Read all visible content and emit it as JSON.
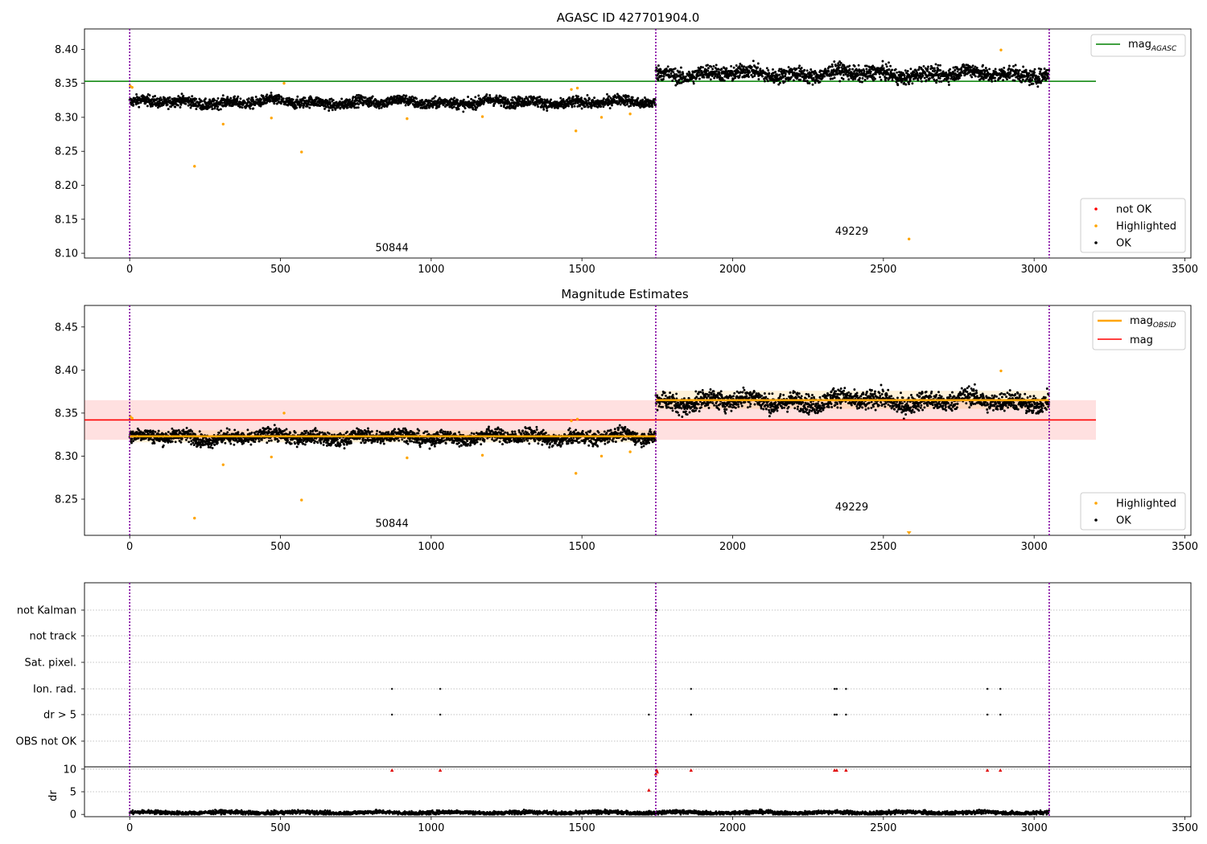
{
  "chart_data": [
    {
      "type": "scatter",
      "title": "AGASC ID 427701904.0",
      "xlim": [
        -150,
        3520
      ],
      "ylim": [
        8.093,
        8.43
      ],
      "xticks": [
        0,
        500,
        1000,
        1500,
        2000,
        2500,
        3000,
        3500
      ],
      "yticks": [
        "8.10",
        "8.15",
        "8.20",
        "8.25",
        "8.30",
        "8.35",
        "8.40"
      ],
      "obs_boundaries": [
        0,
        1745,
        3050
      ],
      "obs_labels": [
        {
          "text": "50844",
          "x": 870,
          "y": 8.103
        },
        {
          "text": "49229",
          "x": 2395,
          "y": 8.127
        }
      ],
      "mag_agasc": {
        "value": 8.353,
        "x0": -150,
        "x1": 3205,
        "color": "#008000"
      },
      "series": [
        {
          "name": "OK",
          "color": "#000000",
          "segments": [
            {
              "x0": 0,
              "x1": 1745,
              "mean": 8.322,
              "spread": 0.008
            },
            {
              "x0": 1745,
              "x1": 3050,
              "mean": 8.364,
              "spread": 0.011
            }
          ]
        },
        {
          "name": "Highlighted",
          "color": "#ffa500",
          "points": [
            [
              2,
              8.346
            ],
            [
              8,
              8.344
            ],
            [
              215,
              8.228
            ],
            [
              310,
              8.29
            ],
            [
              470,
              8.299
            ],
            [
              512,
              8.35
            ],
            [
              570,
              8.249
            ],
            [
              920,
              8.298
            ],
            [
              1170,
              8.301
            ],
            [
              1465,
              8.341
            ],
            [
              1480,
              8.28
            ],
            [
              1485,
              8.343
            ],
            [
              1565,
              8.3
            ],
            [
              1660,
              8.305
            ],
            [
              2585,
              8.121
            ],
            [
              2890,
              8.399
            ]
          ]
        },
        {
          "name": "not OK",
          "color": "#ff0000",
          "points": []
        }
      ],
      "legend_upper": [
        {
          "label": "mag",
          "sub": "AGASC",
          "color": "#008000"
        }
      ],
      "legend_lower": [
        {
          "label": "not OK",
          "color": "#ff0000"
        },
        {
          "label": "Highlighted",
          "color": "#ffa500"
        },
        {
          "label": "OK",
          "color": "#000000"
        }
      ]
    },
    {
      "type": "scatter",
      "title": "Magnitude Estimates",
      "xlim": [
        -150,
        3520
      ],
      "ylim": [
        8.208,
        8.475
      ],
      "xticks": [
        0,
        500,
        1000,
        1500,
        2000,
        2500,
        3000,
        3500
      ],
      "yticks": [
        "8.25",
        "8.30",
        "8.35",
        "8.40",
        "8.45"
      ],
      "obs_boundaries": [
        0,
        1745,
        3050
      ],
      "obs_labels": [
        {
          "text": "50844",
          "x": 870,
          "y": 8.218
        },
        {
          "text": "49229",
          "x": 2395,
          "y": 8.237
        }
      ],
      "mag": {
        "value": 8.342,
        "band": [
          8.319,
          8.365
        ],
        "x0": -150,
        "x1": 3205,
        "color": "#ff0000"
      },
      "mag_obsid": [
        {
          "x0": 0,
          "x1": 1745,
          "value": 8.323,
          "band": [
            8.316,
            8.33
          ]
        },
        {
          "x0": 1745,
          "x1": 3050,
          "value": 8.365,
          "band": [
            8.355,
            8.376
          ]
        }
      ],
      "series": [
        {
          "name": "OK",
          "color": "#000000",
          "segments": [
            {
              "x0": 0,
              "x1": 1745,
              "mean": 8.322,
              "spread": 0.008
            },
            {
              "x0": 1745,
              "x1": 3050,
              "mean": 8.364,
              "spread": 0.011
            }
          ]
        },
        {
          "name": "Highlighted",
          "color": "#ffa500",
          "points": [
            [
              2,
              8.346
            ],
            [
              8,
              8.344
            ],
            [
              215,
              8.228
            ],
            [
              310,
              8.29
            ],
            [
              470,
              8.299
            ],
            [
              512,
              8.35
            ],
            [
              570,
              8.249
            ],
            [
              920,
              8.298
            ],
            [
              1170,
              8.301
            ],
            [
              1465,
              8.341
            ],
            [
              1480,
              8.28
            ],
            [
              1485,
              8.343
            ],
            [
              1565,
              8.3
            ],
            [
              1660,
              8.305
            ],
            [
              2890,
              8.399
            ]
          ]
        }
      ],
      "legend_upper": [
        {
          "label": "mag",
          "sub": "OBSID",
          "color": "#ffa500"
        },
        {
          "label": "mag",
          "sub": "",
          "color": "#ff0000"
        }
      ],
      "legend_lower": [
        {
          "label": "Highlighted",
          "color": "#ffa500"
        },
        {
          "label": "OK",
          "color": "#000000"
        }
      ]
    },
    {
      "type": "scatter",
      "xlim": [
        -150,
        3520
      ],
      "xticks": [
        0,
        500,
        1000,
        1500,
        2000,
        2500,
        3000,
        3500
      ],
      "obs_boundaries": [
        0,
        1745,
        3050
      ],
      "flag_rows": [
        "not Kalman",
        "not track",
        "Sat. pixel.",
        "Ion. rad.",
        "dr > 5",
        "OBS not OK"
      ],
      "flag_points": {
        "not Kalman": [
          1748
        ],
        "not track": [],
        "Sat. pixel.": [],
        "Ion. rad.": [
          870,
          1030,
          1862,
          2338,
          2345,
          2376,
          2845,
          2888
        ],
        "dr > 5": [
          870,
          1030,
          1722,
          1862,
          2338,
          2345,
          2376,
          2845,
          2888
        ],
        "OBS not OK": []
      },
      "dr": {
        "ylabel": "dr",
        "yticks": [
          0,
          5,
          10
        ],
        "ylim": [
          -0.5,
          10.5
        ],
        "high_points": [
          [
            870,
            9.8
          ],
          [
            1030,
            9.8
          ],
          [
            1748,
            9.8
          ],
          [
            1750,
            9.4
          ],
          [
            1862,
            9.8
          ],
          [
            2338,
            9.8
          ],
          [
            2345,
            9.8
          ],
          [
            2376,
            9.8
          ],
          [
            2845,
            9.8
          ],
          [
            2888,
            9.8
          ],
          [
            1722,
            5.4
          ],
          [
            1745,
            9.0
          ]
        ],
        "baseline": {
          "x0": 0,
          "x1": 3050,
          "mean": 0.4,
          "spread": 0.35
        }
      }
    }
  ]
}
